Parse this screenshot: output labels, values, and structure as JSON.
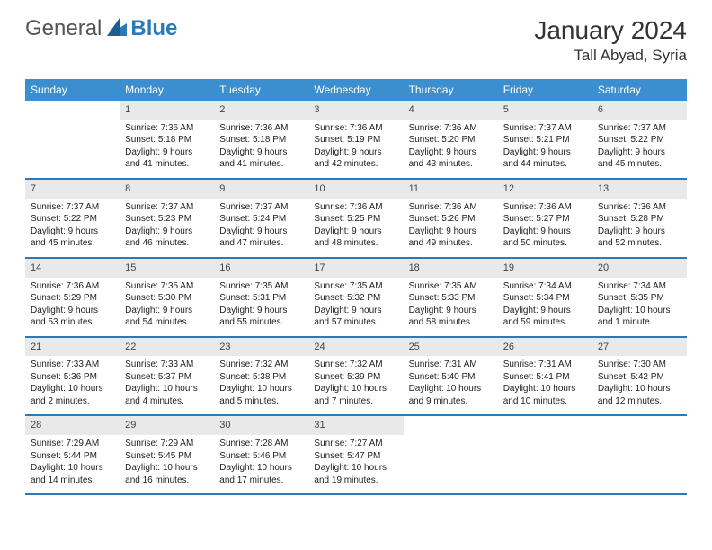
{
  "brand": {
    "general": "General",
    "blue": "Blue"
  },
  "header": {
    "title": "January 2024",
    "location": "Tall Abyad, Syria"
  },
  "colors": {
    "header_bar": "#3b8fce",
    "rule": "#2a7ab8",
    "daynum_bg": "#e9e9e9",
    "text": "#222222",
    "bg": "#ffffff"
  },
  "weekdays": [
    "Sunday",
    "Monday",
    "Tuesday",
    "Wednesday",
    "Thursday",
    "Friday",
    "Saturday"
  ],
  "font": {
    "body_size_pt": 7.5,
    "title_size_pt": 21,
    "weekday_size_pt": 9
  },
  "weeks": [
    [
      null,
      {
        "n": "1",
        "sr": "Sunrise: 7:36 AM",
        "ss": "Sunset: 5:18 PM",
        "d1": "Daylight: 9 hours",
        "d2": "and 41 minutes."
      },
      {
        "n": "2",
        "sr": "Sunrise: 7:36 AM",
        "ss": "Sunset: 5:18 PM",
        "d1": "Daylight: 9 hours",
        "d2": "and 41 minutes."
      },
      {
        "n": "3",
        "sr": "Sunrise: 7:36 AM",
        "ss": "Sunset: 5:19 PM",
        "d1": "Daylight: 9 hours",
        "d2": "and 42 minutes."
      },
      {
        "n": "4",
        "sr": "Sunrise: 7:36 AM",
        "ss": "Sunset: 5:20 PM",
        "d1": "Daylight: 9 hours",
        "d2": "and 43 minutes."
      },
      {
        "n": "5",
        "sr": "Sunrise: 7:37 AM",
        "ss": "Sunset: 5:21 PM",
        "d1": "Daylight: 9 hours",
        "d2": "and 44 minutes."
      },
      {
        "n": "6",
        "sr": "Sunrise: 7:37 AM",
        "ss": "Sunset: 5:22 PM",
        "d1": "Daylight: 9 hours",
        "d2": "and 45 minutes."
      }
    ],
    [
      {
        "n": "7",
        "sr": "Sunrise: 7:37 AM",
        "ss": "Sunset: 5:22 PM",
        "d1": "Daylight: 9 hours",
        "d2": "and 45 minutes."
      },
      {
        "n": "8",
        "sr": "Sunrise: 7:37 AM",
        "ss": "Sunset: 5:23 PM",
        "d1": "Daylight: 9 hours",
        "d2": "and 46 minutes."
      },
      {
        "n": "9",
        "sr": "Sunrise: 7:37 AM",
        "ss": "Sunset: 5:24 PM",
        "d1": "Daylight: 9 hours",
        "d2": "and 47 minutes."
      },
      {
        "n": "10",
        "sr": "Sunrise: 7:36 AM",
        "ss": "Sunset: 5:25 PM",
        "d1": "Daylight: 9 hours",
        "d2": "and 48 minutes."
      },
      {
        "n": "11",
        "sr": "Sunrise: 7:36 AM",
        "ss": "Sunset: 5:26 PM",
        "d1": "Daylight: 9 hours",
        "d2": "and 49 minutes."
      },
      {
        "n": "12",
        "sr": "Sunrise: 7:36 AM",
        "ss": "Sunset: 5:27 PM",
        "d1": "Daylight: 9 hours",
        "d2": "and 50 minutes."
      },
      {
        "n": "13",
        "sr": "Sunrise: 7:36 AM",
        "ss": "Sunset: 5:28 PM",
        "d1": "Daylight: 9 hours",
        "d2": "and 52 minutes."
      }
    ],
    [
      {
        "n": "14",
        "sr": "Sunrise: 7:36 AM",
        "ss": "Sunset: 5:29 PM",
        "d1": "Daylight: 9 hours",
        "d2": "and 53 minutes."
      },
      {
        "n": "15",
        "sr": "Sunrise: 7:35 AM",
        "ss": "Sunset: 5:30 PM",
        "d1": "Daylight: 9 hours",
        "d2": "and 54 minutes."
      },
      {
        "n": "16",
        "sr": "Sunrise: 7:35 AM",
        "ss": "Sunset: 5:31 PM",
        "d1": "Daylight: 9 hours",
        "d2": "and 55 minutes."
      },
      {
        "n": "17",
        "sr": "Sunrise: 7:35 AM",
        "ss": "Sunset: 5:32 PM",
        "d1": "Daylight: 9 hours",
        "d2": "and 57 minutes."
      },
      {
        "n": "18",
        "sr": "Sunrise: 7:35 AM",
        "ss": "Sunset: 5:33 PM",
        "d1": "Daylight: 9 hours",
        "d2": "and 58 minutes."
      },
      {
        "n": "19",
        "sr": "Sunrise: 7:34 AM",
        "ss": "Sunset: 5:34 PM",
        "d1": "Daylight: 9 hours",
        "d2": "and 59 minutes."
      },
      {
        "n": "20",
        "sr": "Sunrise: 7:34 AM",
        "ss": "Sunset: 5:35 PM",
        "d1": "Daylight: 10 hours",
        "d2": "and 1 minute."
      }
    ],
    [
      {
        "n": "21",
        "sr": "Sunrise: 7:33 AM",
        "ss": "Sunset: 5:36 PM",
        "d1": "Daylight: 10 hours",
        "d2": "and 2 minutes."
      },
      {
        "n": "22",
        "sr": "Sunrise: 7:33 AM",
        "ss": "Sunset: 5:37 PM",
        "d1": "Daylight: 10 hours",
        "d2": "and 4 minutes."
      },
      {
        "n": "23",
        "sr": "Sunrise: 7:32 AM",
        "ss": "Sunset: 5:38 PM",
        "d1": "Daylight: 10 hours",
        "d2": "and 5 minutes."
      },
      {
        "n": "24",
        "sr": "Sunrise: 7:32 AM",
        "ss": "Sunset: 5:39 PM",
        "d1": "Daylight: 10 hours",
        "d2": "and 7 minutes."
      },
      {
        "n": "25",
        "sr": "Sunrise: 7:31 AM",
        "ss": "Sunset: 5:40 PM",
        "d1": "Daylight: 10 hours",
        "d2": "and 9 minutes."
      },
      {
        "n": "26",
        "sr": "Sunrise: 7:31 AM",
        "ss": "Sunset: 5:41 PM",
        "d1": "Daylight: 10 hours",
        "d2": "and 10 minutes."
      },
      {
        "n": "27",
        "sr": "Sunrise: 7:30 AM",
        "ss": "Sunset: 5:42 PM",
        "d1": "Daylight: 10 hours",
        "d2": "and 12 minutes."
      }
    ],
    [
      {
        "n": "28",
        "sr": "Sunrise: 7:29 AM",
        "ss": "Sunset: 5:44 PM",
        "d1": "Daylight: 10 hours",
        "d2": "and 14 minutes."
      },
      {
        "n": "29",
        "sr": "Sunrise: 7:29 AM",
        "ss": "Sunset: 5:45 PM",
        "d1": "Daylight: 10 hours",
        "d2": "and 16 minutes."
      },
      {
        "n": "30",
        "sr": "Sunrise: 7:28 AM",
        "ss": "Sunset: 5:46 PM",
        "d1": "Daylight: 10 hours",
        "d2": "and 17 minutes."
      },
      {
        "n": "31",
        "sr": "Sunrise: 7:27 AM",
        "ss": "Sunset: 5:47 PM",
        "d1": "Daylight: 10 hours",
        "d2": "and 19 minutes."
      },
      null,
      null,
      null
    ]
  ]
}
